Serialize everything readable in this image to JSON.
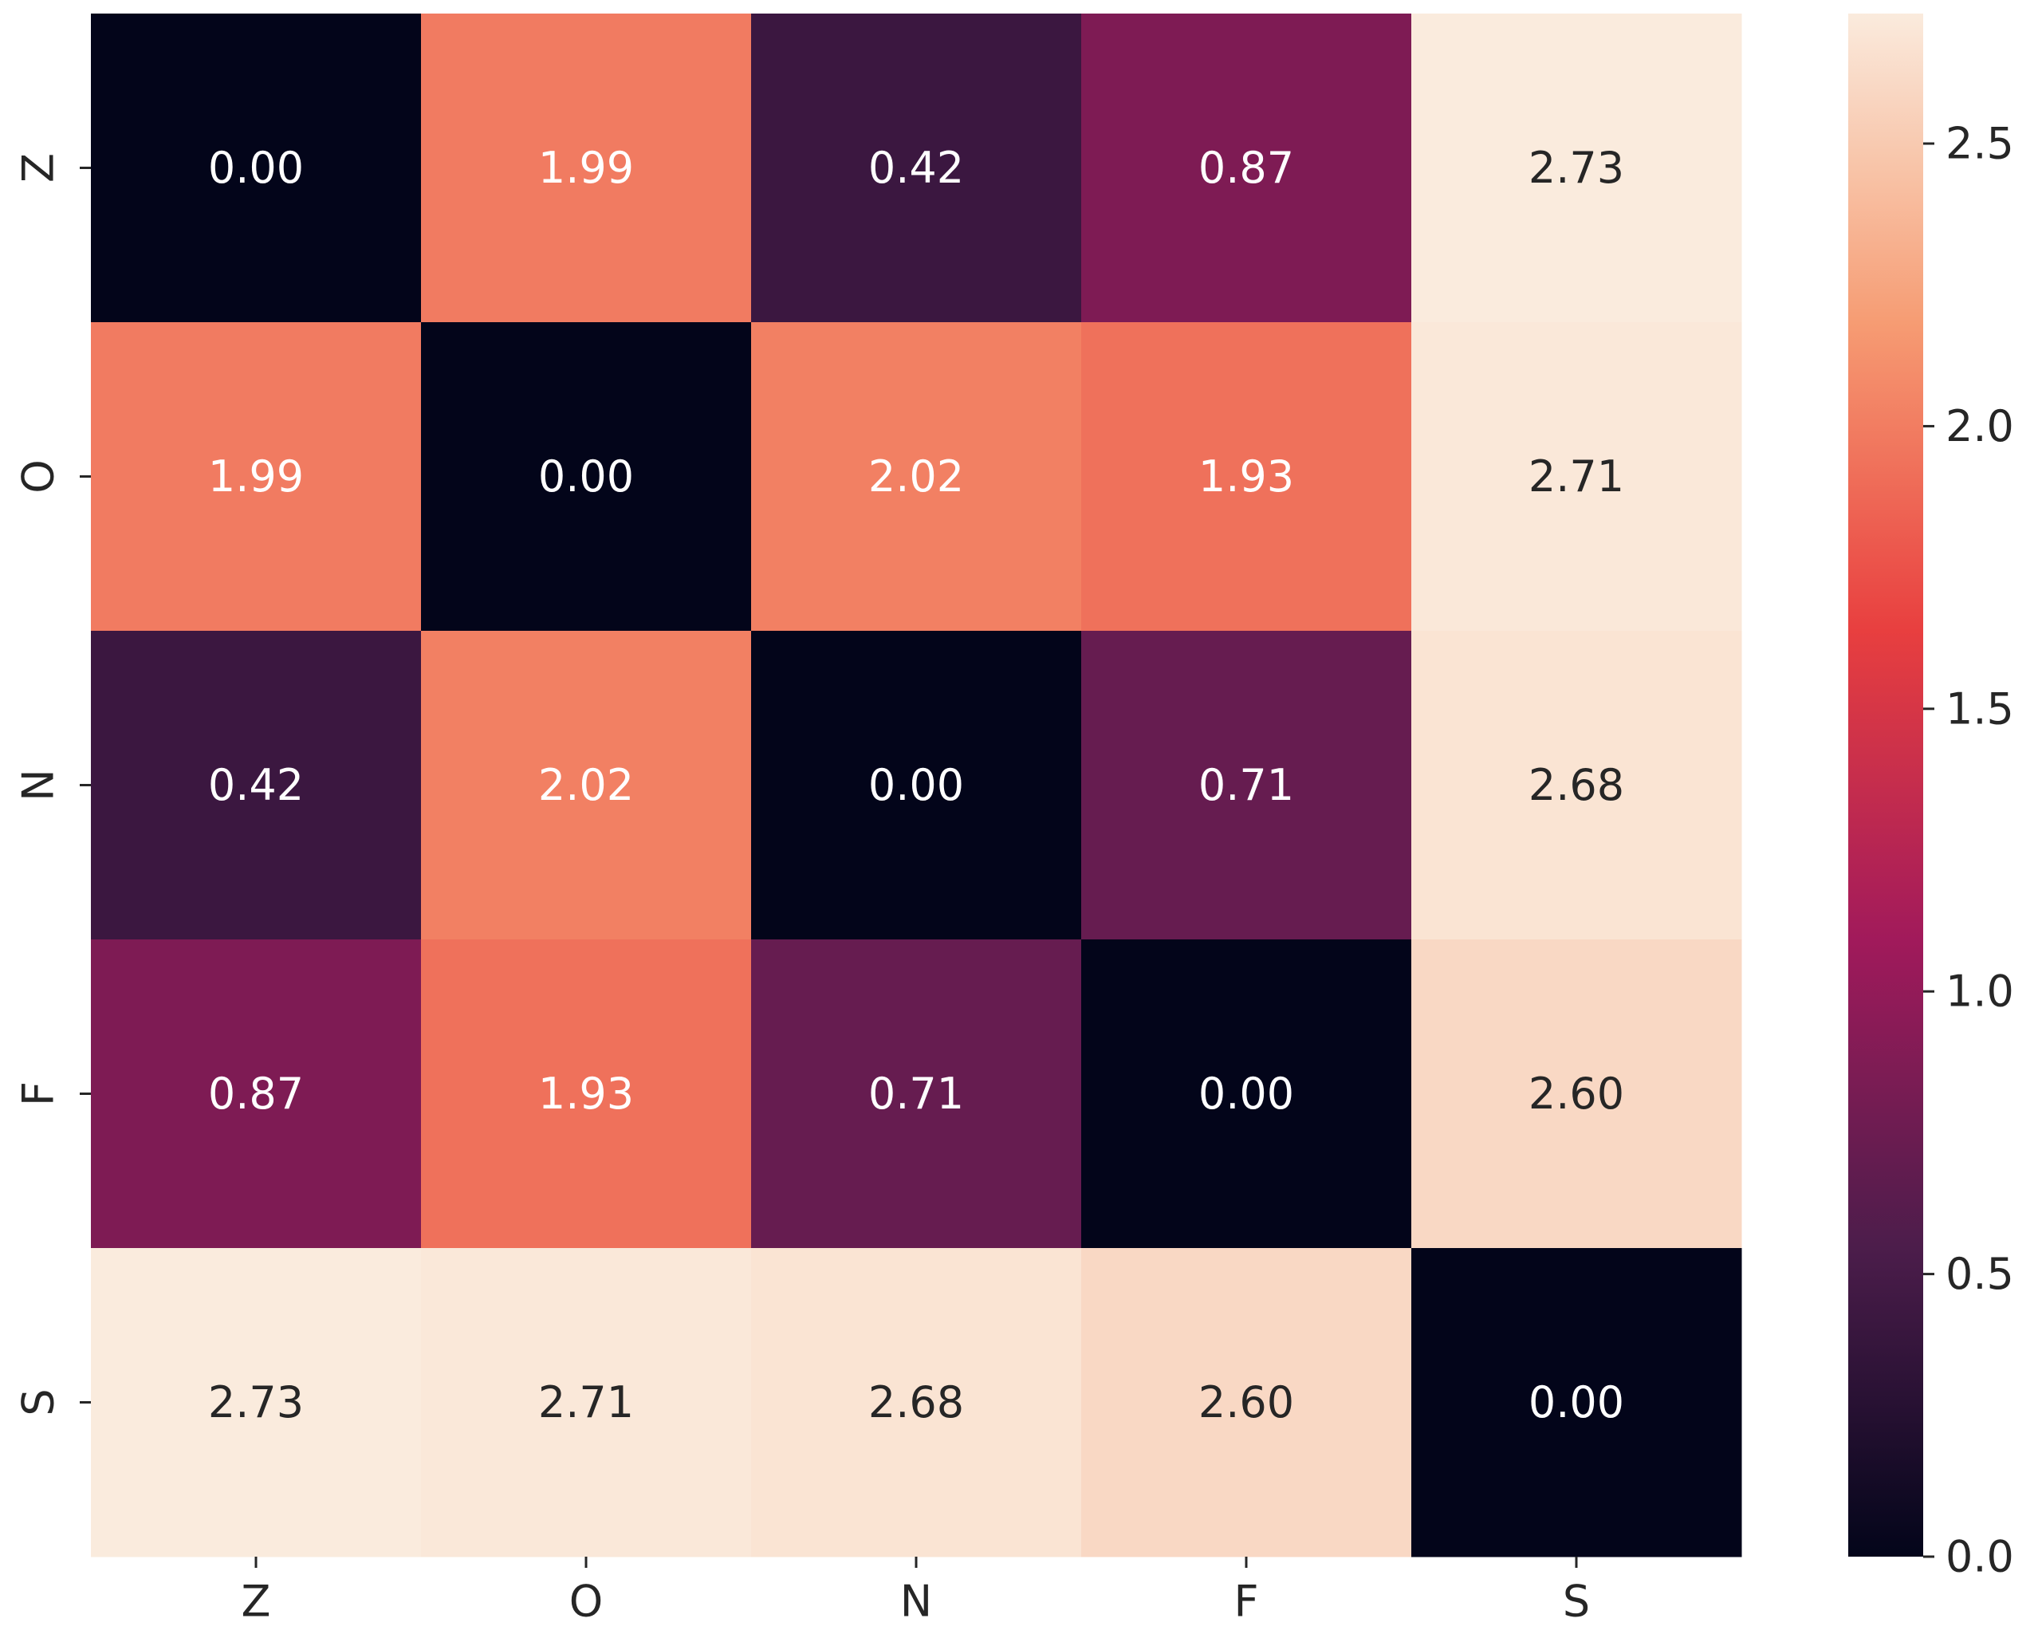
{
  "chart_data": {
    "type": "heatmap",
    "title": "",
    "xlabel": "",
    "ylabel": "",
    "rows": [
      "Z",
      "O",
      "N",
      "F",
      "S"
    ],
    "columns": [
      "Z",
      "O",
      "N",
      "F",
      "S"
    ],
    "values": [
      [
        0.0,
        1.99,
        0.42,
        0.87,
        2.73
      ],
      [
        1.99,
        0.0,
        2.02,
        1.93,
        2.71
      ],
      [
        0.42,
        2.02,
        0.0,
        0.71,
        2.68
      ],
      [
        0.87,
        1.93,
        0.71,
        0.0,
        2.6
      ],
      [
        2.73,
        2.71,
        2.68,
        2.6,
        0.0
      ]
    ],
    "value_format": "0.00",
    "colormap": "rocket",
    "colorbar": {
      "range": [
        0.0,
        2.73
      ],
      "ticks": [
        0.0,
        0.5,
        1.0,
        1.5,
        2.0,
        2.5
      ],
      "tick_labels": [
        "0.0",
        "0.5",
        "1.0",
        "1.5",
        "2.0",
        "2.5"
      ]
    }
  },
  "colors": {
    "text_dark": "#262626",
    "text_light": "#ffffff",
    "axis": "#262626",
    "rocket_stops": [
      "#03051a",
      "#4c1d4b",
      "#a11a5b",
      "#e83f3f",
      "#f69c73",
      "#faebdd"
    ]
  }
}
